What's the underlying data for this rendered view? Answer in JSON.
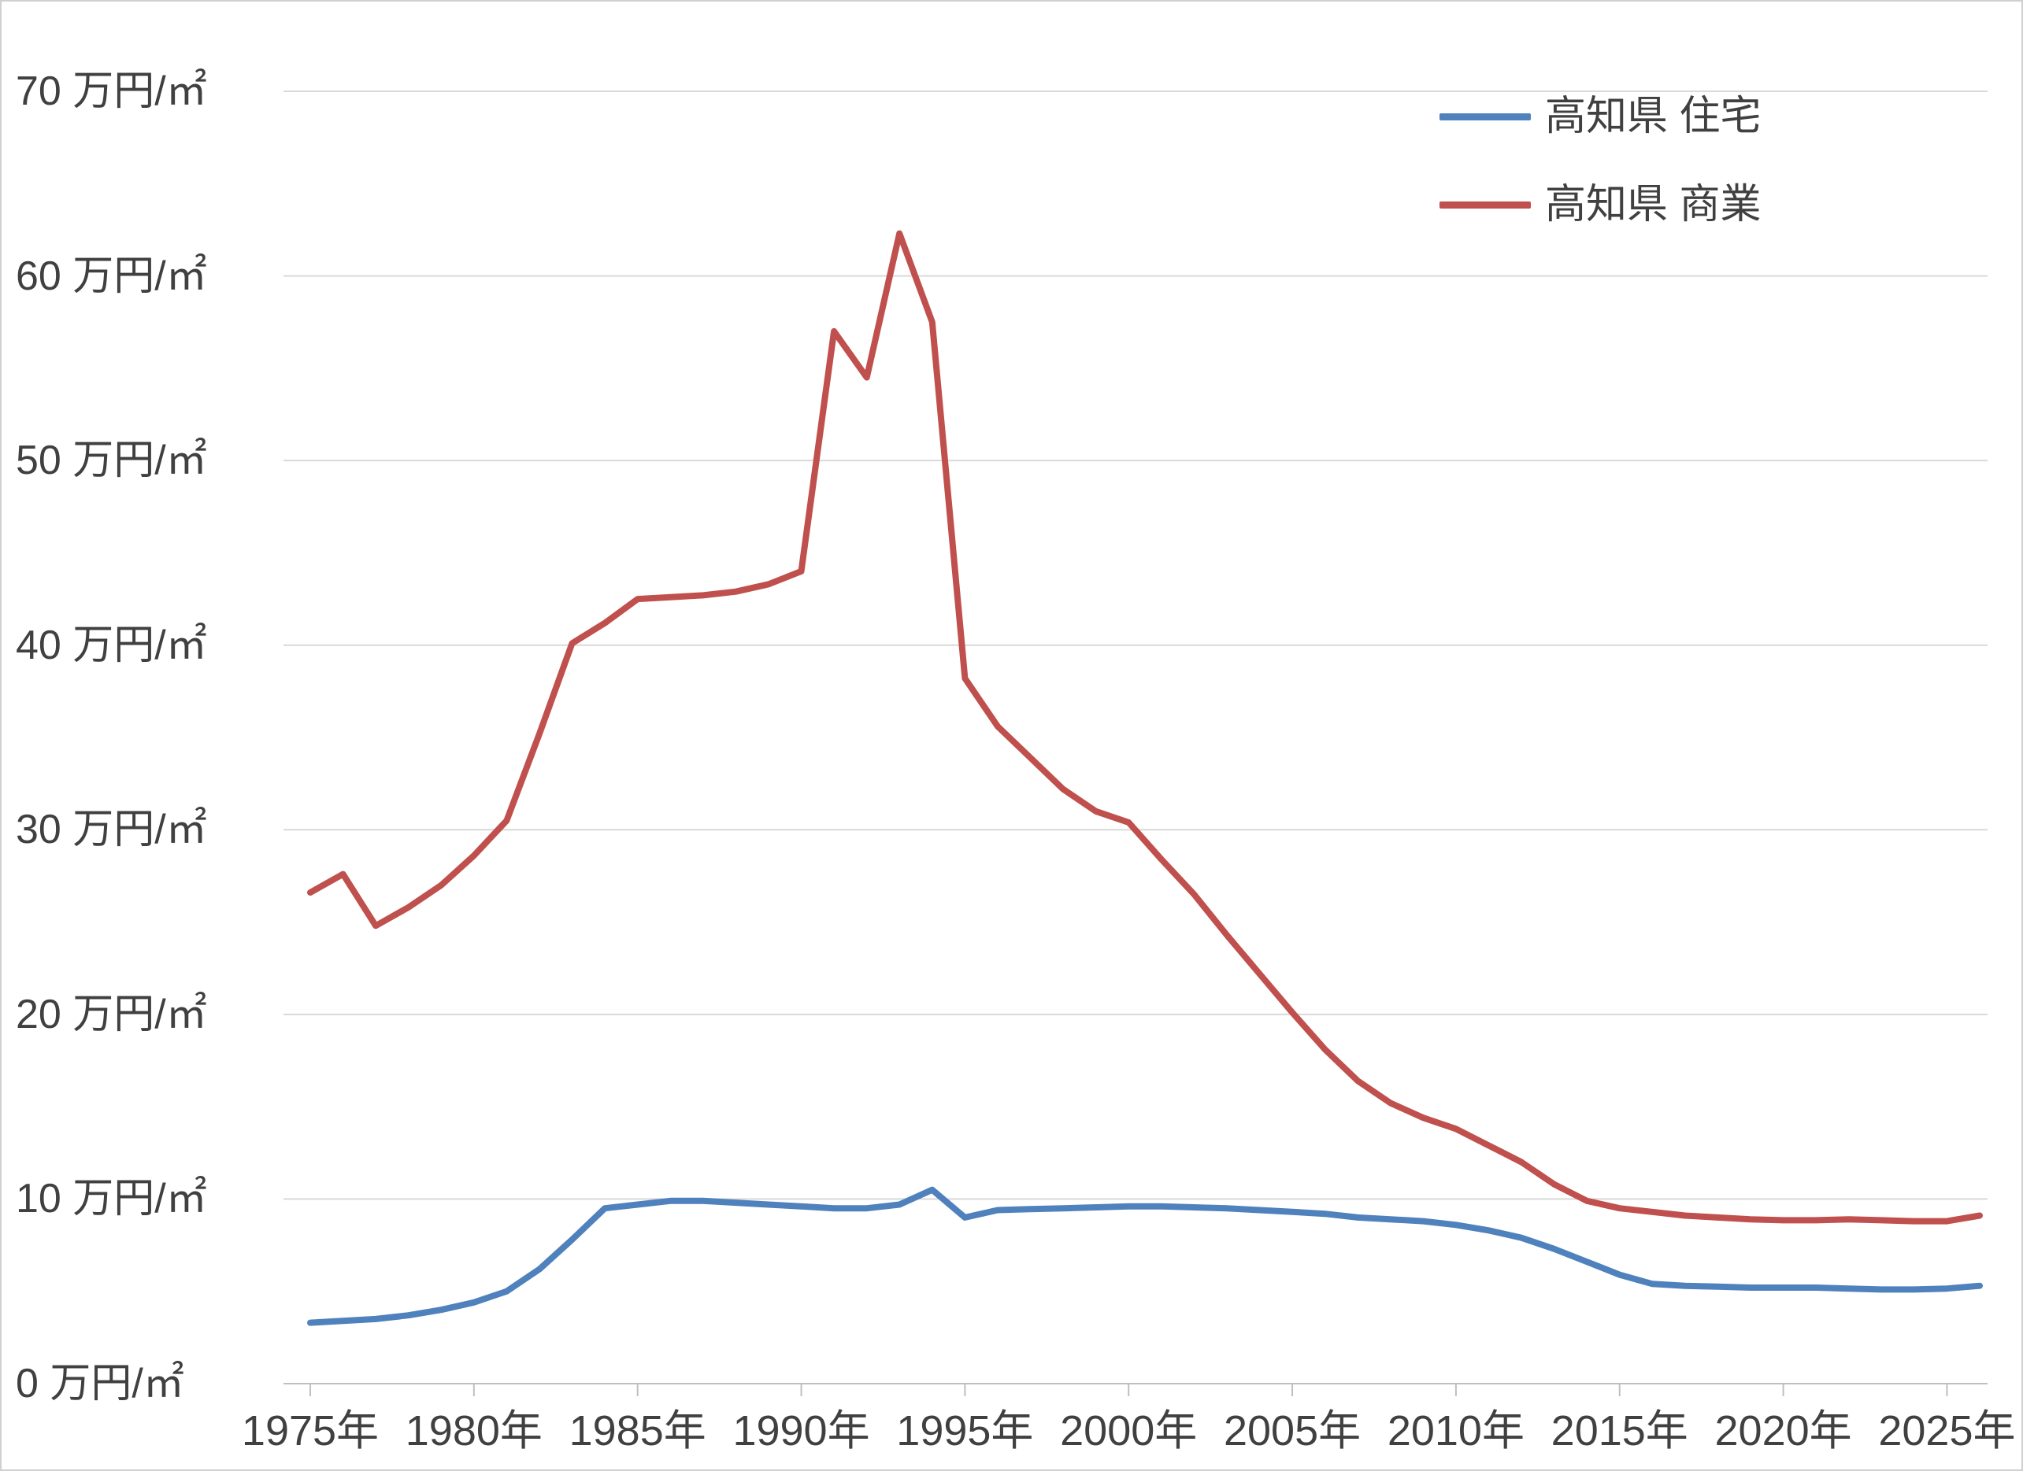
{
  "chart_data": {
    "type": "line",
    "title": "",
    "unit_label": "万円/㎡",
    "ylim": [
      0,
      70
    ],
    "grid": true,
    "legend_position": "top-right",
    "colors": {
      "grid": "#d9d9d9",
      "axis": "#bfbfbf",
      "text": "#404040",
      "background": "#ffffff",
      "residential": "#4F81BD",
      "commercial": "#C0504D"
    },
    "x": [
      1975,
      1976,
      1977,
      1978,
      1979,
      1980,
      1981,
      1982,
      1983,
      1984,
      1985,
      1986,
      1987,
      1988,
      1989,
      1990,
      1991,
      1992,
      1993,
      1994,
      1995,
      1996,
      1997,
      1998,
      1999,
      2000,
      2001,
      2002,
      2003,
      2004,
      2005,
      2006,
      2007,
      2008,
      2009,
      2010,
      2011,
      2012,
      2013,
      2014,
      2015,
      2016,
      2017,
      2018,
      2019,
      2020,
      2021,
      2022,
      2023,
      2024,
      2025,
      2026
    ],
    "series": [
      {
        "name": "高知県 住宅",
        "color": "#4F81BD",
        "values": [
          3.3,
          3.4,
          3.5,
          3.7,
          4.0,
          4.4,
          5.0,
          6.2,
          7.8,
          9.5,
          9.7,
          9.9,
          9.9,
          9.8,
          9.7,
          9.6,
          9.5,
          9.5,
          9.7,
          10.5,
          9.0,
          9.4,
          9.45,
          9.5,
          9.55,
          9.6,
          9.6,
          9.55,
          9.5,
          9.4,
          9.3,
          9.2,
          9.0,
          8.9,
          8.8,
          8.6,
          8.3,
          7.9,
          7.3,
          6.6,
          5.9,
          5.4,
          5.3,
          5.25,
          5.2,
          5.2,
          5.2,
          5.15,
          5.1,
          5.1,
          5.15,
          5.3
        ]
      },
      {
        "name": "高知県 商業",
        "color": "#C0504D",
        "values": [
          26.6,
          27.6,
          24.8,
          25.8,
          27.0,
          28.6,
          30.5,
          35.2,
          40.1,
          41.2,
          42.5,
          42.6,
          42.7,
          42.9,
          43.3,
          44.0,
          57.0,
          54.5,
          62.3,
          57.5,
          38.2,
          35.6,
          33.9,
          32.2,
          31.0,
          30.4,
          28.4,
          26.5,
          24.3,
          22.2,
          20.1,
          18.1,
          16.4,
          15.2,
          14.4,
          13.8,
          12.9,
          12.0,
          10.8,
          9.9,
          9.5,
          9.3,
          9.1,
          9.0,
          8.9,
          8.85,
          8.85,
          8.9,
          8.85,
          8.8,
          8.8,
          9.1
        ]
      }
    ],
    "yticks": [
      {
        "value": 0,
        "label": "0 万円/㎡"
      },
      {
        "value": 10,
        "label": "10 万円/㎡"
      },
      {
        "value": 20,
        "label": "20 万円/㎡"
      },
      {
        "value": 30,
        "label": "30 万円/㎡"
      },
      {
        "value": 40,
        "label": "40 万円/㎡"
      },
      {
        "value": 50,
        "label": "50 万円/㎡"
      },
      {
        "value": 60,
        "label": "60 万円/㎡"
      },
      {
        "value": 70,
        "label": "70 万円/㎡"
      }
    ],
    "xticks": [
      {
        "value": 1975,
        "label": "1975年"
      },
      {
        "value": 1980,
        "label": "1980年"
      },
      {
        "value": 1985,
        "label": "1985年"
      },
      {
        "value": 1990,
        "label": "1990年"
      },
      {
        "value": 1995,
        "label": "1995年"
      },
      {
        "value": 2000,
        "label": "2000年"
      },
      {
        "value": 2005,
        "label": "2005年"
      },
      {
        "value": 2010,
        "label": "2010年"
      },
      {
        "value": 2015,
        "label": "2015年"
      },
      {
        "value": 2020,
        "label": "2020年"
      },
      {
        "value": 2025,
        "label": "2025年"
      }
    ],
    "legend": [
      {
        "label": "高知県 住宅"
      },
      {
        "label": "高知県 商業"
      }
    ]
  }
}
